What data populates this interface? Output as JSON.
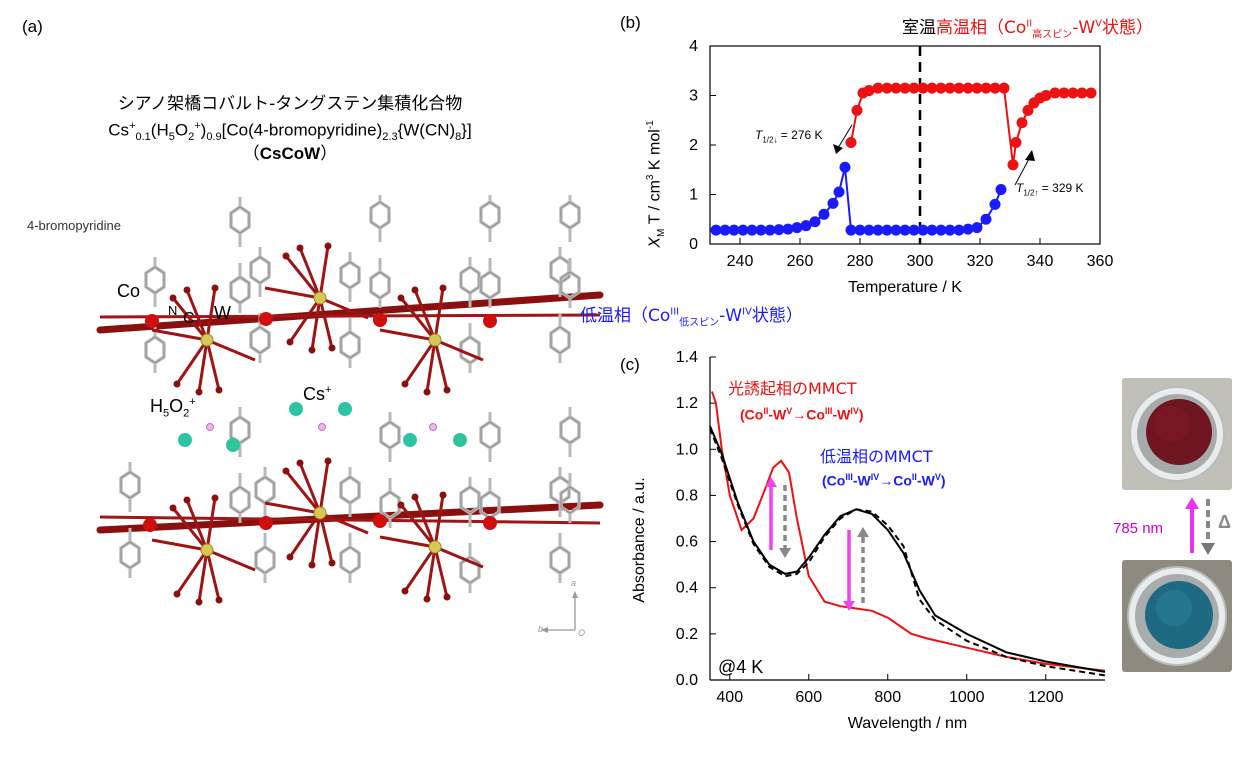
{
  "panels": {
    "a": "(a)",
    "b": "(b)",
    "c": "(c)"
  },
  "compound": {
    "name_jp": "シアノ架橋コバルト-タングステン集積化合物",
    "formula": {
      "p1": "Cs",
      "p1_sup": "+",
      "p1_sub": "0.1",
      "p2": "(H",
      "p2_sub": "5",
      "p3": "O",
      "p3_sub": "2",
      "p3_sup": "+",
      "p4": ")",
      "p4_sub": "0.9",
      "p5": "[Co(4-bromopyridine)",
      "p5_sub": "2.3",
      "p6": "{W(CN)",
      "p6_sub": "8",
      "p7": "}]"
    },
    "abbr_open": "（",
    "abbr": "CsCoW",
    "abbr_close": "）"
  },
  "structure_labels": {
    "ligand": "4-bromopyridine",
    "co": "Co",
    "n": "N",
    "c": "C",
    "w": "W",
    "h5o2_main": "H",
    "h5o2_sub1": "5",
    "h5o2_o": "O",
    "h5o2_sub2": "2",
    "h5o2_sup": "+",
    "cs_main": "Cs",
    "cs_sup": "+",
    "axis_a": "a",
    "axis_b": "b",
    "axis_o": "O"
  },
  "panel_b": {
    "high_phase": {
      "room_temp": "室温",
      "text1": "高温相（Co",
      "sup1": "II",
      "sub1": "高スピン",
      "text2": "-W",
      "sup2": "V",
      "text3": "状態）"
    },
    "low_phase": {
      "text1": "低温相（Co",
      "sup1": "III",
      "sub1": "低スピン",
      "text2": "-W",
      "sup2": "IV",
      "text3": "状態）"
    },
    "t_down": {
      "T": "T",
      "sub": "1/2↓",
      "val": " = 276 K"
    },
    "t_up": {
      "T": "T",
      "sub": "1/2↑",
      "val": " = 329 K"
    },
    "ylabel": {
      "chi": "X",
      "chi_sub": "M",
      "rest1": "T / cm",
      "sup3": "3",
      "rest2": " K mol",
      "supm1": "-1"
    }
  },
  "panel_c": {
    "photo_red": {
      "title": "光誘起相のMMCT",
      "trans_a": "(Co",
      "sa": "II",
      "trans_b": "-W",
      "sb": "V",
      "trans_c": "→Co",
      "sc": "III",
      "trans_d": "-W",
      "sd": "IV",
      "trans_e": ")"
    },
    "low_blue": {
      "title": "低温相のMMCT",
      "trans_a": "(Co",
      "sa": "III",
      "trans_b": "-W",
      "sb": "IV",
      "trans_c": "→Co",
      "sc": "II",
      "trans_d": "-W",
      "sd": "V",
      "trans_e": ")"
    },
    "temp_note": "@4 K",
    "switch_label": "785 nm",
    "delta": "Δ"
  },
  "colors": {
    "red": "#ee1111",
    "blue": "#1a1aff",
    "magenta": "#cc00cc",
    "gray": "#888888",
    "bond_red": "#a01515",
    "yellow": "#d8c85a",
    "cs_green": "#2fc4a0"
  },
  "chart_data": [
    {
      "type": "line",
      "id": "b",
      "title": "",
      "xlabel": "Temperature / K",
      "ylabel": "XMT / cm3 K mol-1",
      "xlim": [
        230,
        360
      ],
      "ylim": [
        0,
        4
      ],
      "xticks": [
        240,
        260,
        280,
        300,
        320,
        340,
        360
      ],
      "yticks": [
        0,
        1,
        2,
        3,
        4
      ],
      "vline": 300,
      "series": [
        {
          "color": "red",
          "points": [
            [
              277,
              2.05
            ],
            [
              279,
              2.7
            ],
            [
              281,
              3.05
            ],
            [
              283,
              3.1
            ],
            [
              286,
              3.15
            ],
            [
              289,
              3.15
            ],
            [
              292,
              3.15
            ],
            [
              295,
              3.15
            ],
            [
              298,
              3.15
            ],
            [
              301,
              3.15
            ],
            [
              304,
              3.15
            ],
            [
              307,
              3.15
            ],
            [
              310,
              3.15
            ],
            [
              313,
              3.15
            ],
            [
              316,
              3.15
            ],
            [
              319,
              3.15
            ],
            [
              322,
              3.15
            ],
            [
              325,
              3.15
            ],
            [
              328,
              3.15
            ],
            [
              331,
              1.6
            ],
            [
              332,
              2.05
            ],
            [
              334,
              2.45
            ],
            [
              336,
              2.7
            ],
            [
              338,
              2.85
            ],
            [
              340,
              2.95
            ],
            [
              342,
              3.0
            ],
            [
              345,
              3.05
            ],
            [
              348,
              3.05
            ],
            [
              351,
              3.05
            ],
            [
              354,
              3.05
            ],
            [
              357,
              3.05
            ]
          ]
        },
        {
          "color": "blue",
          "points": [
            [
              232,
              0.28
            ],
            [
              235,
              0.28
            ],
            [
              238,
              0.28
            ],
            [
              241,
              0.28
            ],
            [
              244,
              0.28
            ],
            [
              247,
              0.28
            ],
            [
              250,
              0.28
            ],
            [
              253,
              0.29
            ],
            [
              256,
              0.3
            ],
            [
              259,
              0.33
            ],
            [
              262,
              0.37
            ],
            [
              265,
              0.45
            ],
            [
              268,
              0.6
            ],
            [
              271,
              0.82
            ],
            [
              273,
              1.05
            ],
            [
              275,
              1.55
            ],
            [
              277,
              0.28
            ],
            [
              280,
              0.28
            ],
            [
              283,
              0.28
            ],
            [
              286,
              0.28
            ],
            [
              289,
              0.28
            ],
            [
              292,
              0.28
            ],
            [
              295,
              0.28
            ],
            [
              298,
              0.28
            ],
            [
              301,
              0.28
            ],
            [
              304,
              0.28
            ],
            [
              307,
              0.28
            ],
            [
              310,
              0.28
            ],
            [
              313,
              0.28
            ],
            [
              316,
              0.3
            ],
            [
              319,
              0.33
            ],
            [
              322,
              0.5
            ],
            [
              325,
              0.8
            ],
            [
              327,
              1.1
            ]
          ]
        }
      ]
    },
    {
      "type": "line",
      "id": "c",
      "title": "",
      "xlabel": "Wavelength / nm",
      "ylabel": "Absorbance / a.u.",
      "xlim": [
        350,
        1350
      ],
      "ylim": [
        0,
        1.4
      ],
      "xticks": [
        400,
        600,
        800,
        1000,
        1200
      ],
      "yticks": [
        0.0,
        0.2,
        0.4,
        0.6,
        0.8,
        1.0,
        1.2,
        1.4
      ],
      "series": [
        {
          "color": "red",
          "style": "solid",
          "x": [
            355,
            365,
            380,
            400,
            430,
            460,
            490,
            510,
            530,
            550,
            570,
            600,
            640,
            680,
            720,
            760,
            800,
            860,
            900,
            1000,
            1100,
            1200,
            1350
          ],
          "y": [
            1.25,
            1.2,
            1.0,
            0.8,
            0.65,
            0.7,
            0.83,
            0.92,
            0.95,
            0.9,
            0.7,
            0.45,
            0.34,
            0.32,
            0.31,
            0.3,
            0.27,
            0.2,
            0.18,
            0.14,
            0.1,
            0.07,
            0.04
          ]
        },
        {
          "color": "black",
          "style": "solid",
          "x": [
            350,
            380,
            420,
            460,
            500,
            540,
            570,
            600,
            640,
            680,
            720,
            760,
            800,
            840,
            880,
            920,
            1000,
            1100,
            1200,
            1350
          ],
          "y": [
            1.1,
            0.98,
            0.77,
            0.6,
            0.5,
            0.46,
            0.47,
            0.53,
            0.63,
            0.71,
            0.74,
            0.72,
            0.65,
            0.55,
            0.39,
            0.28,
            0.2,
            0.12,
            0.08,
            0.035
          ]
        },
        {
          "color": "black",
          "style": "dashed",
          "x": [
            350,
            380,
            420,
            460,
            500,
            540,
            570,
            600,
            640,
            680,
            720,
            760,
            800,
            840,
            880,
            920,
            1000,
            1100,
            1200,
            1350
          ],
          "y": [
            1.09,
            0.96,
            0.76,
            0.59,
            0.49,
            0.45,
            0.46,
            0.51,
            0.62,
            0.7,
            0.74,
            0.73,
            0.67,
            0.58,
            0.35,
            0.26,
            0.17,
            0.1,
            0.06,
            0.02
          ]
        }
      ]
    }
  ]
}
